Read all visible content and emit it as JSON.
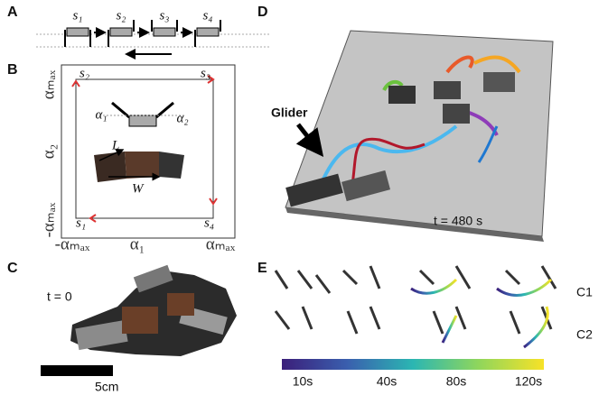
{
  "panels": {
    "a": {
      "label": "A",
      "states": [
        "s₁",
        "s₂",
        "s₃",
        "s₄"
      ]
    },
    "b": {
      "label": "B",
      "corners": [
        "s₂",
        "s₃",
        "s₁",
        "s₄"
      ],
      "y_axis": [
        "αₘₐₓ",
        "α₂",
        "-αₘₐₓ"
      ],
      "x_axis": [
        "-αₘₐₓ",
        "α₁",
        "αₘₐₓ"
      ],
      "angles": [
        "α₁",
        "α₂"
      ],
      "dims": [
        "L",
        "W"
      ]
    },
    "c": {
      "label": "C",
      "time": "t = 0",
      "scale": "5cm"
    },
    "d": {
      "label": "D",
      "annotation": "Glider",
      "time": "t = 480 s"
    },
    "e": {
      "label": "E",
      "rows": [
        "C1",
        "C2"
      ],
      "colorbar": [
        "10s",
        "40s",
        "80s",
        "120s"
      ]
    }
  }
}
